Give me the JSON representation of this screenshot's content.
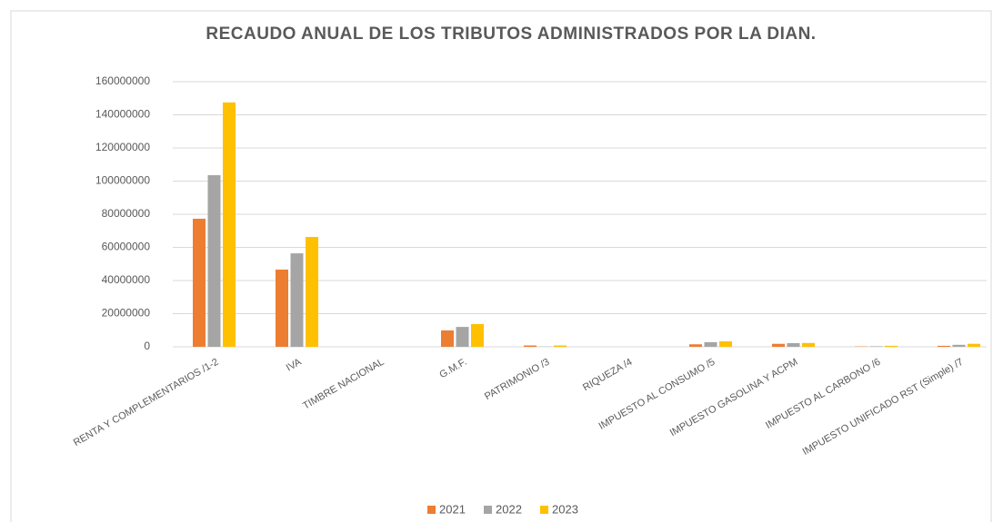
{
  "chart_data": {
    "type": "bar",
    "title": "RECAUDO ANUAL DE LOS TRIBUTOS ADMINISTRADOS POR LA DIAN.",
    "categories": [
      "RENTA Y COMPLEMENTARIOS /1-2",
      "IVA",
      "TIMBRE NACIONAL",
      "G.M.F.",
      "PATRIMONIO /3",
      "RIQUEZA /4",
      "IMPUESTO AL CONSUMO /5",
      "IMPUESTO  GASOLINA Y ACPM",
      "IMPUESTO AL CARBONO /6",
      "IMPUESTO UNIFICADO RST (Simple) /7"
    ],
    "series": [
      {
        "name": "2021",
        "color": "#ed7d31",
        "values": [
          77300000,
          46600000,
          0,
          9900000,
          800000,
          0,
          1500000,
          1800000,
          200000,
          600000
        ]
      },
      {
        "name": "2022",
        "color": "#a5a5a5",
        "values": [
          103600000,
          56400000,
          0,
          12000000,
          100000,
          0,
          2800000,
          2200000,
          300000,
          1200000
        ]
      },
      {
        "name": "2023",
        "color": "#ffc000",
        "values": [
          147500000,
          66300000,
          0,
          13700000,
          800000,
          0,
          3300000,
          2300000,
          600000,
          1800000
        ]
      }
    ],
    "ylim": [
      0,
      160000000
    ],
    "yticks": [
      0,
      20000000,
      40000000,
      60000000,
      80000000,
      100000000,
      120000000,
      140000000,
      160000000
    ],
    "grid": true,
    "legend": "bottom"
  }
}
